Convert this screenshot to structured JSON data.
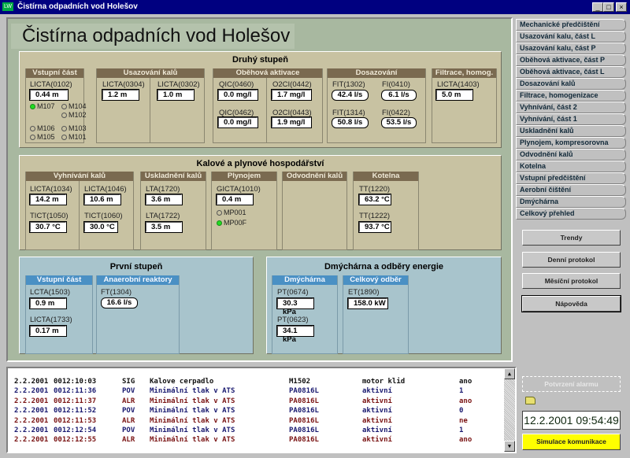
{
  "window": {
    "title": "Čistírna odpadních vod Holešov",
    "app_icon": "LW",
    "buttons": [
      "_",
      "□",
      "×"
    ]
  },
  "header": {
    "title": "Čistírna odpadních vod Holešov"
  },
  "druhy": {
    "title": "Druhý stupeň",
    "vstupni": {
      "title": "Vstupní část",
      "sensor": {
        "label": "LICTA(0102)",
        "value": "0.44 m"
      },
      "indicators": [
        {
          "name": "M107",
          "on": true
        },
        {
          "name": "M104",
          "on": false
        },
        {
          "name": "M102",
          "on": false
        },
        {
          "name": "M106",
          "on": false
        },
        {
          "name": "M103",
          "on": false
        },
        {
          "name": "M105",
          "on": false
        },
        {
          "name": "M101",
          "on": false
        }
      ]
    },
    "usazovani": {
      "title": "Usazování kalů",
      "sensors": [
        {
          "label": "LICTA(0304)",
          "value": "1.2 m"
        },
        {
          "label": "LICTA(0302)",
          "value": "1.0 m"
        }
      ]
    },
    "obehova": {
      "title": "Oběhová aktivace",
      "sensors": [
        {
          "label": "QIC(0460)",
          "value": "0.0 mg/l"
        },
        {
          "label": "QIC(0462)",
          "value": "0.0 mg/l"
        },
        {
          "label": "O2CI(0442)",
          "value": "1.7 mg/l"
        },
        {
          "label": "O2CI(0443)",
          "value": "1.9 mg/l"
        }
      ]
    },
    "dosazovani": {
      "title": "Dosazování",
      "sensors": [
        {
          "label": "FIT(1302)",
          "value": "42.4 l/s"
        },
        {
          "label": "FI(0410)",
          "value": "6.1 l/s"
        },
        {
          "label": "FIT(1314)",
          "value": "50.8 l/s"
        },
        {
          "label": "FI(0422)",
          "value": "53.5 l/s"
        }
      ]
    },
    "filtrace": {
      "title": "Filtrace, homog.",
      "sensor": {
        "label": "LICTA(1403)",
        "value": "5.0 m"
      }
    }
  },
  "kalove": {
    "title": "Kalové a plynové hospodářství",
    "vyhnivani": {
      "title": "Vyhnívání kalů",
      "sensors": [
        {
          "label": "LICTA(1034)",
          "value": "14.2 m"
        },
        {
          "label": "LICTA(1046)",
          "value": "10.6 m"
        },
        {
          "label": "TICT(1050)",
          "value": "30.7 °C"
        },
        {
          "label": "TICT(1060)",
          "value": "30.0 °C"
        }
      ]
    },
    "uskladneni": {
      "title": "Uskladnění kalů",
      "sensors": [
        {
          "label": "LTA(1720)",
          "value": "3.6 m"
        },
        {
          "label": "LTA(1722)",
          "value": "3.5 m"
        }
      ]
    },
    "plynojem": {
      "title": "Plynojem",
      "sensor": {
        "label": "GICTA(1010)",
        "value": "0.4 m"
      },
      "indicators": [
        {
          "name": "MP001",
          "on": false
        },
        {
          "name": "MP00F",
          "on": true
        }
      ]
    },
    "odvodneni": {
      "title": "Odvodnění kalů"
    },
    "kotelna": {
      "title": "Kotelna",
      "sensors": [
        {
          "label": "TT(1220)",
          "value": "63.2 °C"
        },
        {
          "label": "TT(1222)",
          "value": "93.7 °C"
        }
      ]
    }
  },
  "prvni": {
    "title": "První stupeň",
    "vstupni": {
      "title": "Vstupní část",
      "sensors": [
        {
          "label": "LCTA(1503)",
          "value": "0.9 m"
        },
        {
          "label": "LICTA(1733)",
          "value": "0.17 m"
        }
      ]
    },
    "anaerobni": {
      "title": "Anaerobní reaktory",
      "sensor": {
        "label": "FT(1304)",
        "value": "16.6 l/s"
      }
    }
  },
  "dmycharna": {
    "title": "Dmýchárna a odběry energie",
    "dmycharna": {
      "title": "Dmýchárna",
      "sensors": [
        {
          "label": "PT(0674)",
          "value": "30.3 kPa"
        },
        {
          "label": "PT(0623)",
          "value": "34.1 kPa"
        }
      ]
    },
    "celkovy": {
      "title": "Celkový odběr",
      "sensor": {
        "label": "ET(1890)",
        "value": "158.0 kW"
      }
    }
  },
  "log": {
    "colors": {
      "POV": "#1a1a70",
      "SIG": "#111111",
      "ALR": "#7a1414"
    },
    "rows": [
      [
        "2.2.2001",
        "0012:10:03",
        "SIG",
        "Kalove cerpadlo",
        "M1502",
        "motor klid",
        "ano"
      ],
      [
        "2.2.2001",
        "0012:11:36",
        "POV",
        "Minimální tlak v ATS",
        "PA0816L",
        "aktivní",
        "1"
      ],
      [
        "2.2.2001",
        "0012:11:37",
        "ALR",
        "Minimální tlak v ATS",
        "PA0816L",
        "aktivní",
        "ano"
      ],
      [
        "2.2.2001",
        "0012:11:52",
        "POV",
        "Minimální tlak v ATS",
        "PA0816L",
        "aktivní",
        "0"
      ],
      [
        "2.2.2001",
        "0012:11:53",
        "ALR",
        "Minimální tlak v ATS",
        "PA0816L",
        "aktivní",
        "ne"
      ],
      [
        "2.2.2001",
        "0012:12:54",
        "POV",
        "Minimální tlak v ATS",
        "PA0816L",
        "aktivní",
        "1"
      ],
      [
        "2.2.2001",
        "0012:12:55",
        "ALR",
        "Minimální tlak v ATS",
        "PA0816L",
        "aktivní",
        "ano"
      ]
    ]
  },
  "tabs": [
    "Mechanické předčištění",
    "Usazování kalu, část L",
    "Usazování kalu, část P",
    "Oběhová aktivace, část P",
    "Oběhová aktivace, část L",
    "Dosazování kalů",
    "Filtrace, homogenizace",
    "Vyhnívání, část 2",
    "Vyhnívání, část 1",
    "Uskladnění kalů",
    "Plynojem, kompresorovna",
    "Odvodnění kalů",
    "Kotelna",
    "Vstupní předčištění",
    "Aerobní čištění",
    "Dmýchárna",
    "Celkový přehled"
  ],
  "buttons": {
    "trendy": "Trendy",
    "denni": "Denní protokol",
    "mesicni": "Měsíční protokol",
    "napoveda": "Nápověda",
    "disabled": "Potvrzení alarmu",
    "simulace": "Simulace komunikace"
  },
  "clock": "12.2.2001 09:54:49",
  "colors": {
    "title_bar": "#000080",
    "tan_panel": "#c8c2a2",
    "blue_panel": "#a8c4cc",
    "brown_header": "#7a6a50",
    "blue_header": "#4a90c4",
    "simulace": "#ffff00",
    "indicator_on": "#22dd22"
  }
}
